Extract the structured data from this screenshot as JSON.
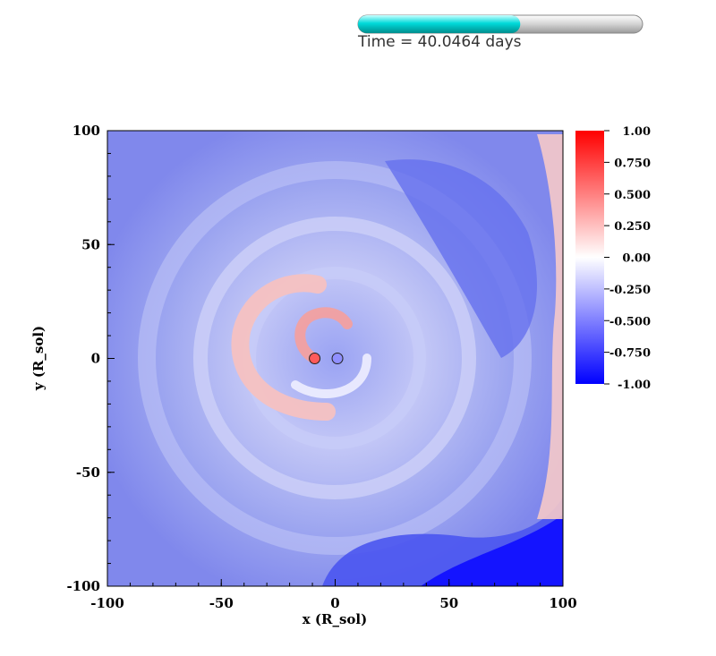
{
  "header": {
    "time_text": "Time = 40.0464 days"
  },
  "progress": {
    "fraction": 0.57,
    "fill_color": "#00d2d2",
    "track_color": "#e6e6e6"
  },
  "chart_data": {
    "type": "heatmap",
    "title": "",
    "xlabel": "x (R_sol)",
    "ylabel": "y (R_sol)",
    "xlim": [
      -100,
      100
    ],
    "ylim": [
      -100,
      100
    ],
    "x_ticks": [
      "-100",
      "-50",
      "0",
      "50",
      "100"
    ],
    "y_ticks": [
      "100",
      "50",
      "0",
      "-50",
      "-100"
    ],
    "x_tick_values": [
      -100,
      -50,
      0,
      50,
      100
    ],
    "y_tick_values": [
      100,
      50,
      0,
      -50,
      -100
    ],
    "colorbar": {
      "range": [
        -1.0,
        1.0
      ],
      "colormap": "blue-white-red",
      "color_min": "#0000ff",
      "color_mid": "#ffffff",
      "color_max": "#ff0000",
      "tick_labels": [
        "1.00",
        "0.750",
        "0.500",
        "0.250",
        "0.00",
        "-0.250",
        "-0.500",
        "-0.750",
        "-1.00"
      ],
      "tick_values": [
        1.0,
        0.75,
        0.5,
        0.25,
        0.0,
        -0.25,
        -0.5,
        -0.75,
        -1.0
      ]
    },
    "markers": [
      {
        "name": "particle-1",
        "x": -9,
        "y": 0,
        "color": "#ff5a5a"
      },
      {
        "name": "particle-2",
        "x": 1,
        "y": 0,
        "color": "#9090ff"
      }
    ],
    "grid": false
  }
}
